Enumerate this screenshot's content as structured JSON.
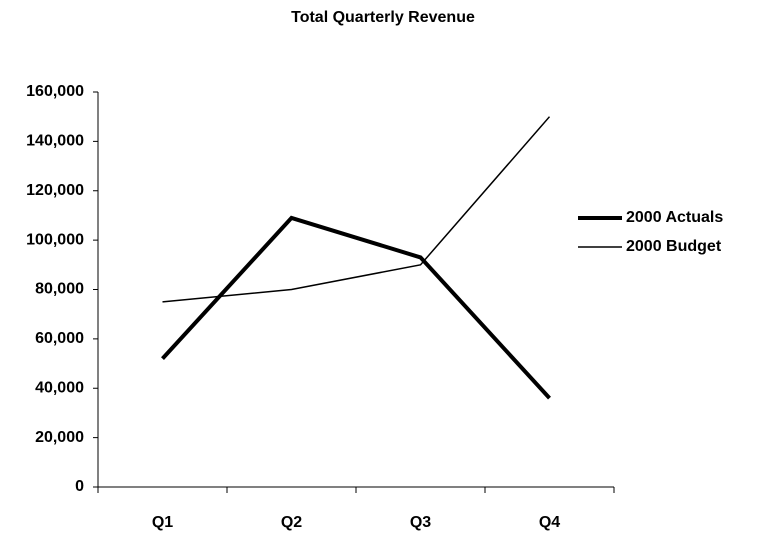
{
  "chart_data": {
    "type": "line",
    "title": "Total Quarterly Revenue",
    "categories": [
      "Q1",
      "Q2",
      "Q3",
      "Q4"
    ],
    "series": [
      {
        "name": "2000 Actuals",
        "color": "#000000",
        "width": 4,
        "values": [
          52000,
          109000,
          93000,
          36000
        ]
      },
      {
        "name": "2000 Budget",
        "color": "#000000",
        "width": 1.5,
        "values": [
          75000,
          80000,
          90000,
          150000
        ]
      }
    ],
    "ylim": [
      0,
      160000
    ],
    "yticks": [
      0,
      {
        "value": 20000,
        "label": "20,000"
      },
      {
        "value": 40000,
        "label": "40,000"
      },
      {
        "value": 60000,
        "label": "60,000"
      },
      {
        "value": 80000,
        "label": "80,000"
      },
      {
        "value": 100000,
        "label": "100,000"
      },
      {
        "value": 120000,
        "label": "120,000"
      },
      {
        "value": 140000,
        "label": "140,000"
      },
      {
        "value": 160000,
        "label": "160,000"
      }
    ],
    "grid": false,
    "legend": "right"
  }
}
